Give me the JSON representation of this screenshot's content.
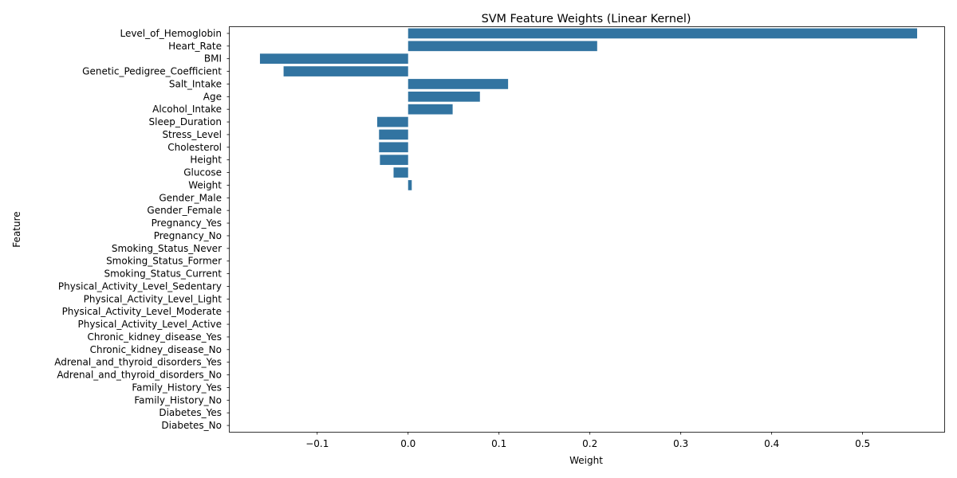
{
  "chart_data": {
    "type": "bar",
    "orientation": "horizontal",
    "title": "SVM Feature Weights (Linear Kernel)",
    "xlabel": "Weight",
    "ylabel": "Feature",
    "xlim": [
      -0.1963,
      0.5907
    ],
    "xticks": [
      -0.1,
      0.0,
      0.1,
      0.2,
      0.3,
      0.4,
      0.5
    ],
    "xtick_labels": [
      "−0.1",
      "0.0",
      "0.1",
      "0.2",
      "0.3",
      "0.4",
      "0.5"
    ],
    "grid": false,
    "legend": false,
    "bar_color": "#3274a1",
    "categories": [
      "Level_of_Hemoglobin",
      "Heart_Rate",
      "BMI",
      "Genetic_Pedigree_Coefficient",
      "Salt_Intake",
      "Age",
      "Alcohol_Intake",
      "Sleep_Duration",
      "Stress_Level",
      "Cholesterol",
      "Height",
      "Glucose",
      "Weight",
      "Gender_Male",
      "Gender_Female",
      "Pregnancy_Yes",
      "Pregnancy_No",
      "Smoking_Status_Never",
      "Smoking_Status_Former",
      "Smoking_Status_Current",
      "Physical_Activity_Level_Sedentary",
      "Physical_Activity_Level_Light",
      "Physical_Activity_Level_Moderate",
      "Physical_Activity_Level_Active",
      "Chronic_kidney_disease_Yes",
      "Chronic_kidney_disease_No",
      "Adrenal_and_thyroid_disorders_Yes",
      "Adrenal_and_thyroid_disorders_No",
      "Family_History_Yes",
      "Family_History_No",
      "Diabetes_Yes",
      "Diabetes_No"
    ],
    "values": [
      0.56,
      0.208,
      -0.163,
      -0.137,
      0.11,
      0.079,
      0.049,
      -0.034,
      -0.032,
      -0.032,
      -0.031,
      -0.016,
      0.004,
      0,
      0,
      0,
      0,
      0,
      0,
      0,
      0,
      0,
      0,
      0,
      0,
      0,
      0,
      0,
      0,
      0,
      0,
      0
    ]
  }
}
